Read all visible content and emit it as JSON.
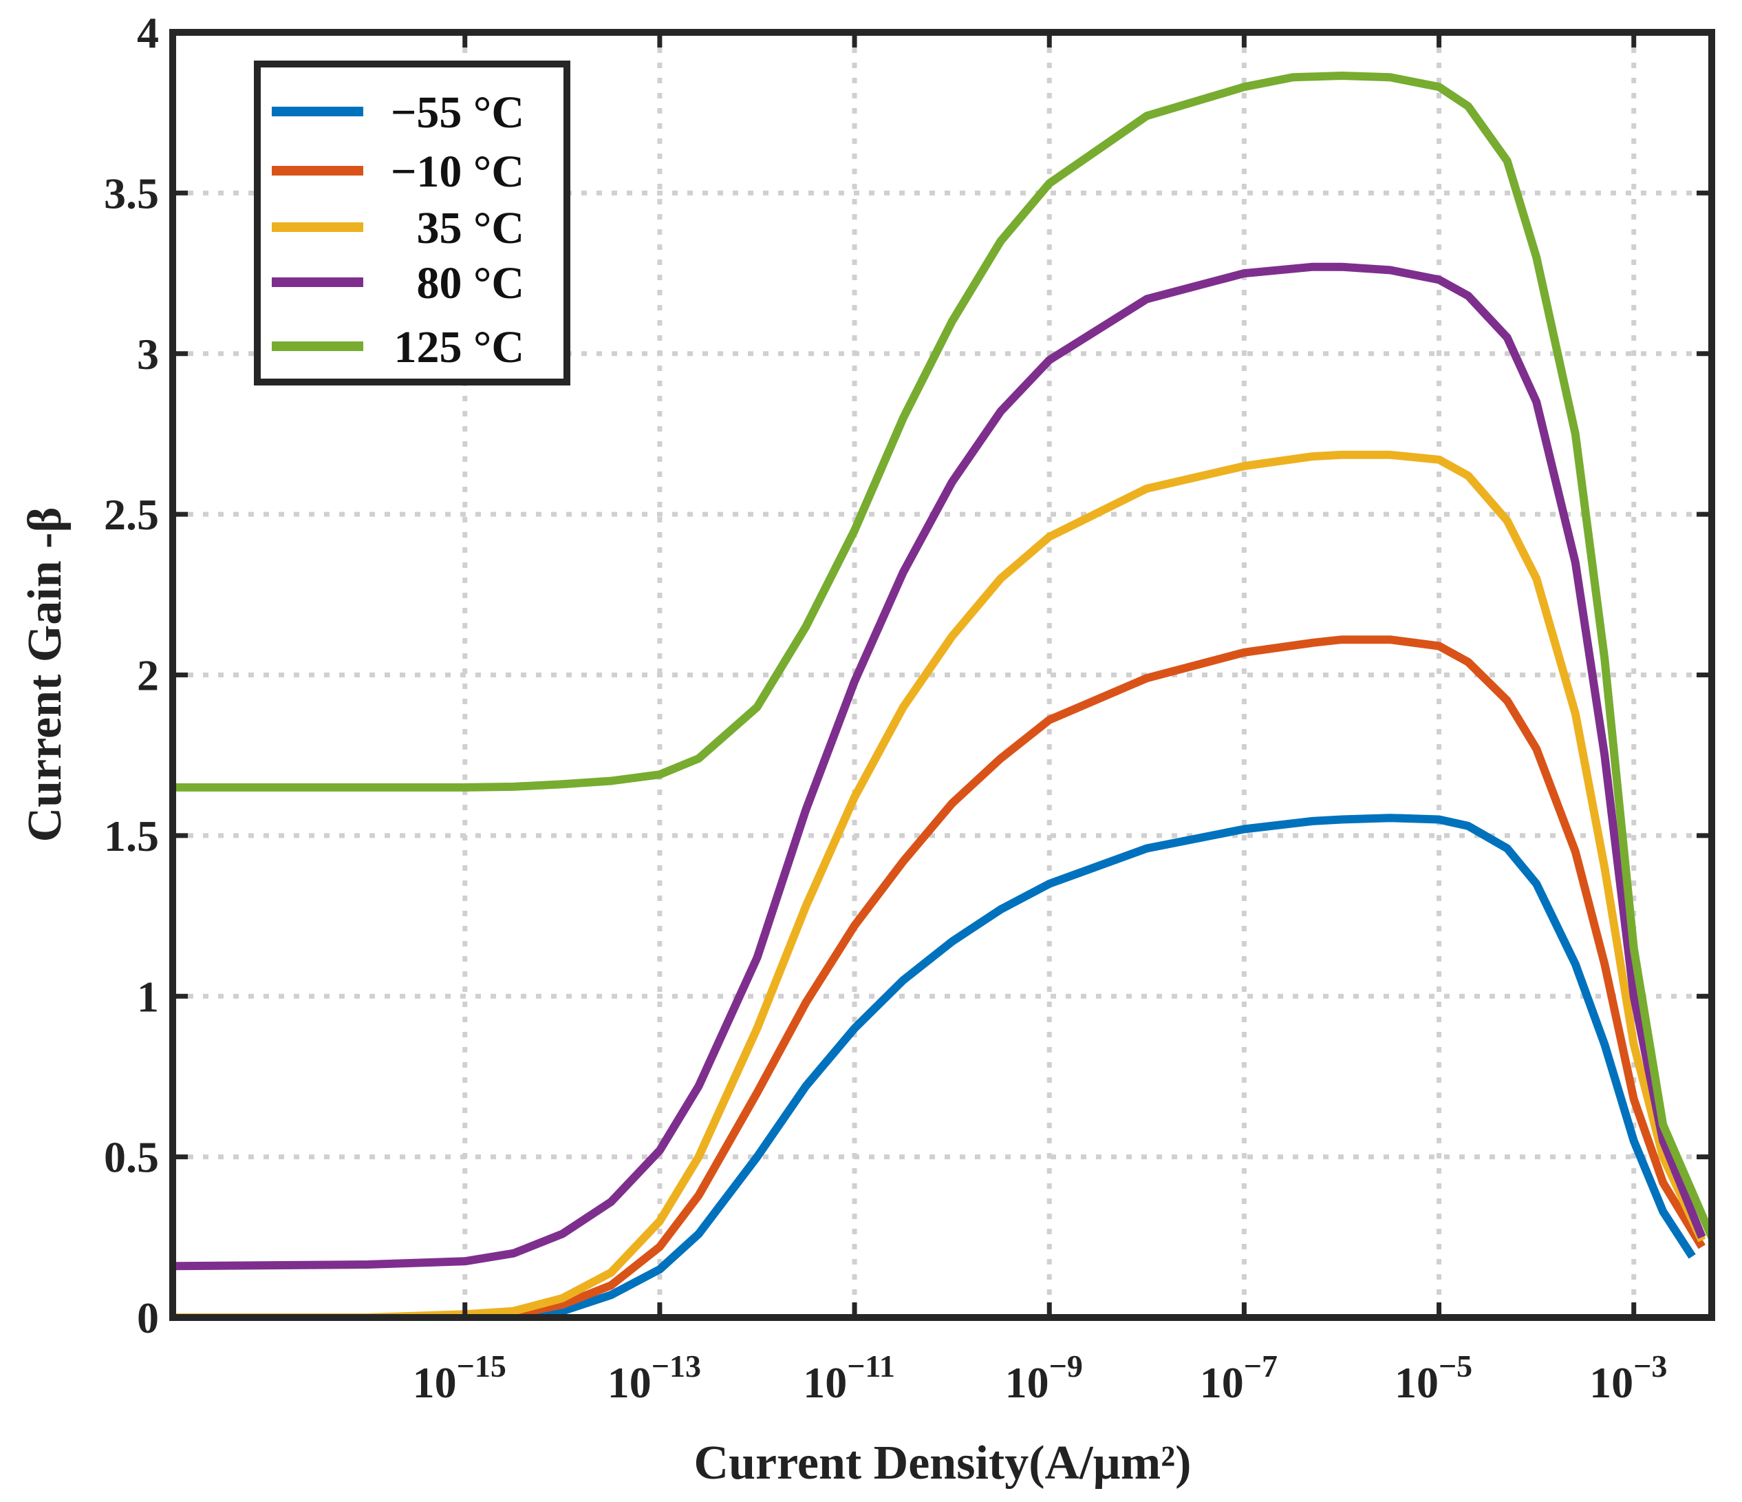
{
  "chart_data": {
    "type": "line",
    "title": "",
    "xlabel": "Current Density(A/µm²)",
    "ylabel": "Current Gain -β",
    "xscale": "log",
    "xlim_log10": [
      -18,
      -2.2
    ],
    "ylim": [
      0,
      4
    ],
    "grid": "dotted",
    "legend_position": "top-left",
    "y_ticks": [
      0,
      0.5,
      1,
      1.5,
      2,
      2.5,
      3,
      3.5,
      4
    ],
    "y_tick_labels": [
      "0",
      "0.5",
      "1",
      "1.5",
      "2",
      "2.5",
      "3",
      "3.5",
      "4"
    ],
    "x_ticks_log10": [
      -15,
      -13,
      -11,
      -9,
      -7,
      -5,
      -3
    ],
    "x_tick_labels": [
      {
        "base": "10",
        "exp": "-15"
      },
      {
        "base": "10",
        "exp": "-13"
      },
      {
        "base": "10",
        "exp": "-11"
      },
      {
        "base": "10",
        "exp": "-9"
      },
      {
        "base": "10",
        "exp": "-7"
      },
      {
        "base": "10",
        "exp": "-5"
      },
      {
        "base": "10",
        "exp": "-3"
      }
    ],
    "series": [
      {
        "name": "−55 °C",
        "color": "#0072BD",
        "x_log10": [
          -18,
          -16,
          -15,
          -14.5,
          -14,
          -13.5,
          -13,
          -12.6,
          -12,
          -11.5,
          -11,
          -10.5,
          -10,
          -9.5,
          -9,
          -8,
          -7,
          -6.3,
          -6,
          -5.5,
          -5,
          -4.7,
          -4.3,
          -4,
          -3.6,
          -3.3,
          -3,
          -2.7,
          -2.4
        ],
        "values": [
          0.0,
          0.0,
          0.0,
          0.005,
          0.02,
          0.07,
          0.15,
          0.26,
          0.5,
          0.72,
          0.9,
          1.05,
          1.17,
          1.27,
          1.35,
          1.46,
          1.52,
          1.545,
          1.55,
          1.555,
          1.55,
          1.53,
          1.46,
          1.35,
          1.1,
          0.85,
          0.55,
          0.33,
          0.19
        ]
      },
      {
        "name": "−10 °C",
        "color": "#D95319",
        "x_log10": [
          -18,
          -16,
          -15,
          -14.5,
          -14,
          -13.5,
          -13,
          -12.6,
          -12,
          -11.5,
          -11,
          -10.5,
          -10,
          -9.5,
          -9,
          -8,
          -7,
          -6.3,
          -6,
          -5.5,
          -5,
          -4.7,
          -4.3,
          -4,
          -3.6,
          -3.3,
          -3,
          -2.7,
          -2.3
        ],
        "values": [
          0.0,
          0.0,
          0.005,
          0.01,
          0.04,
          0.1,
          0.22,
          0.38,
          0.7,
          0.98,
          1.22,
          1.42,
          1.6,
          1.74,
          1.86,
          1.99,
          2.07,
          2.1,
          2.11,
          2.11,
          2.09,
          2.04,
          1.92,
          1.77,
          1.45,
          1.1,
          0.68,
          0.42,
          0.22
        ]
      },
      {
        "name": "35 °C",
        "color": "#EDB120",
        "x_log10": [
          -18,
          -16,
          -15,
          -14.5,
          -14,
          -13.5,
          -13,
          -12.6,
          -12,
          -11.5,
          -11,
          -10.5,
          -10,
          -9.5,
          -9,
          -8,
          -7,
          -6.3,
          -6,
          -5.5,
          -5,
          -4.7,
          -4.3,
          -4,
          -3.6,
          -3.3,
          -3,
          -2.7,
          -2.3
        ],
        "values": [
          0.0,
          0.0,
          0.01,
          0.02,
          0.06,
          0.14,
          0.3,
          0.5,
          0.9,
          1.28,
          1.62,
          1.9,
          2.12,
          2.3,
          2.43,
          2.58,
          2.65,
          2.68,
          2.685,
          2.685,
          2.67,
          2.62,
          2.48,
          2.3,
          1.88,
          1.4,
          0.85,
          0.5,
          0.24
        ]
      },
      {
        "name": "80 °C",
        "color": "#7E2F8E",
        "x_log10": [
          -18,
          -16,
          -15,
          -14.5,
          -14,
          -13.5,
          -13,
          -12.6,
          -12,
          -11.5,
          -11,
          -10.5,
          -10,
          -9.5,
          -9,
          -8,
          -7,
          -6.3,
          -6,
          -5.5,
          -5,
          -4.7,
          -4.3,
          -4,
          -3.6,
          -3.3,
          -3,
          -2.7,
          -2.3
        ],
        "values": [
          0.16,
          0.165,
          0.175,
          0.2,
          0.26,
          0.36,
          0.52,
          0.72,
          1.12,
          1.58,
          1.98,
          2.32,
          2.6,
          2.82,
          2.98,
          3.17,
          3.25,
          3.27,
          3.27,
          3.26,
          3.23,
          3.18,
          3.05,
          2.85,
          2.35,
          1.75,
          1.0,
          0.55,
          0.25
        ]
      },
      {
        "name": "125 °C",
        "color": "#77AC30",
        "x_log10": [
          -18,
          -16,
          -15,
          -14.5,
          -14,
          -13.5,
          -13,
          -12.6,
          -12,
          -11.5,
          -11,
          -10.5,
          -10,
          -9.5,
          -9,
          -8,
          -7,
          -6.5,
          -6,
          -5.5,
          -5,
          -4.7,
          -4.3,
          -4,
          -3.6,
          -3.3,
          -3,
          -2.7,
          -2.2
        ],
        "values": [
          1.65,
          1.65,
          1.65,
          1.652,
          1.66,
          1.67,
          1.69,
          1.74,
          1.9,
          2.15,
          2.45,
          2.8,
          3.1,
          3.35,
          3.53,
          3.74,
          3.83,
          3.86,
          3.865,
          3.86,
          3.83,
          3.77,
          3.6,
          3.3,
          2.75,
          2.05,
          1.15,
          0.6,
          0.25
        ]
      }
    ]
  }
}
